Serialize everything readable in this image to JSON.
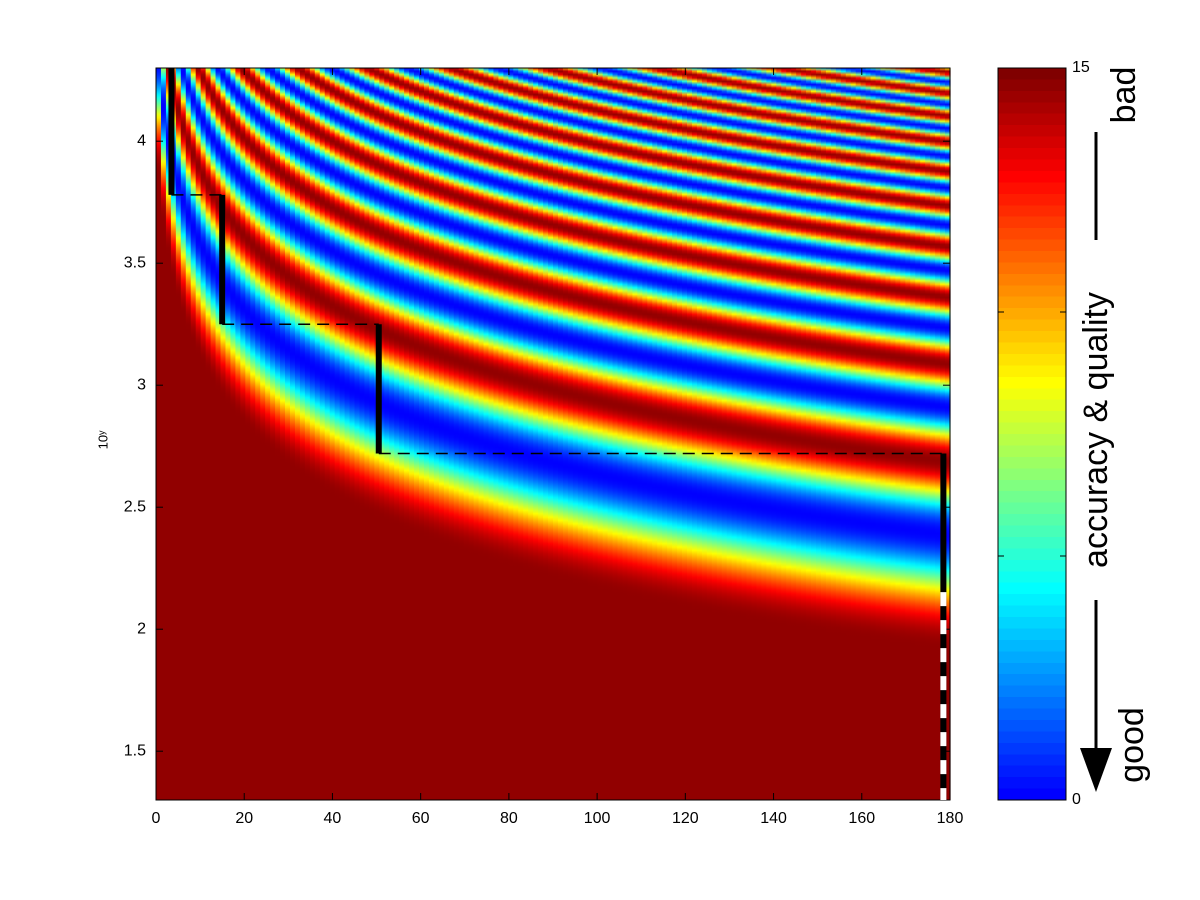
{
  "chart_data": {
    "type": "heatmap",
    "ylabel": "10ʸ",
    "xlim": [
      0,
      180
    ],
    "xticks": [
      0,
      20,
      40,
      60,
      80,
      100,
      120,
      140,
      160,
      180
    ],
    "ylim": [
      1.3,
      4.3
    ],
    "yticks": [
      1.5,
      2,
      2.5,
      3,
      3.5,
      4
    ],
    "clim": [
      0,
      15
    ],
    "cticks": [
      0,
      {
        "value": 5,
        "label": null
      },
      {
        "value": 10,
        "label": null
      },
      15
    ],
    "colormap": "jet",
    "steps": [
      {
        "x": 3.5,
        "y": [
          4.3,
          3.78
        ]
      },
      {
        "x": 15,
        "y": [
          3.78,
          3.25
        ]
      },
      {
        "x": 50.5,
        "y": [
          3.25,
          2.72
        ]
      },
      {
        "x": 178.5,
        "y": [
          2.72,
          1.3
        ]
      }
    ],
    "annotations": {
      "top": "bad",
      "middle": "accuracy & quality",
      "bottom": "good"
    }
  }
}
